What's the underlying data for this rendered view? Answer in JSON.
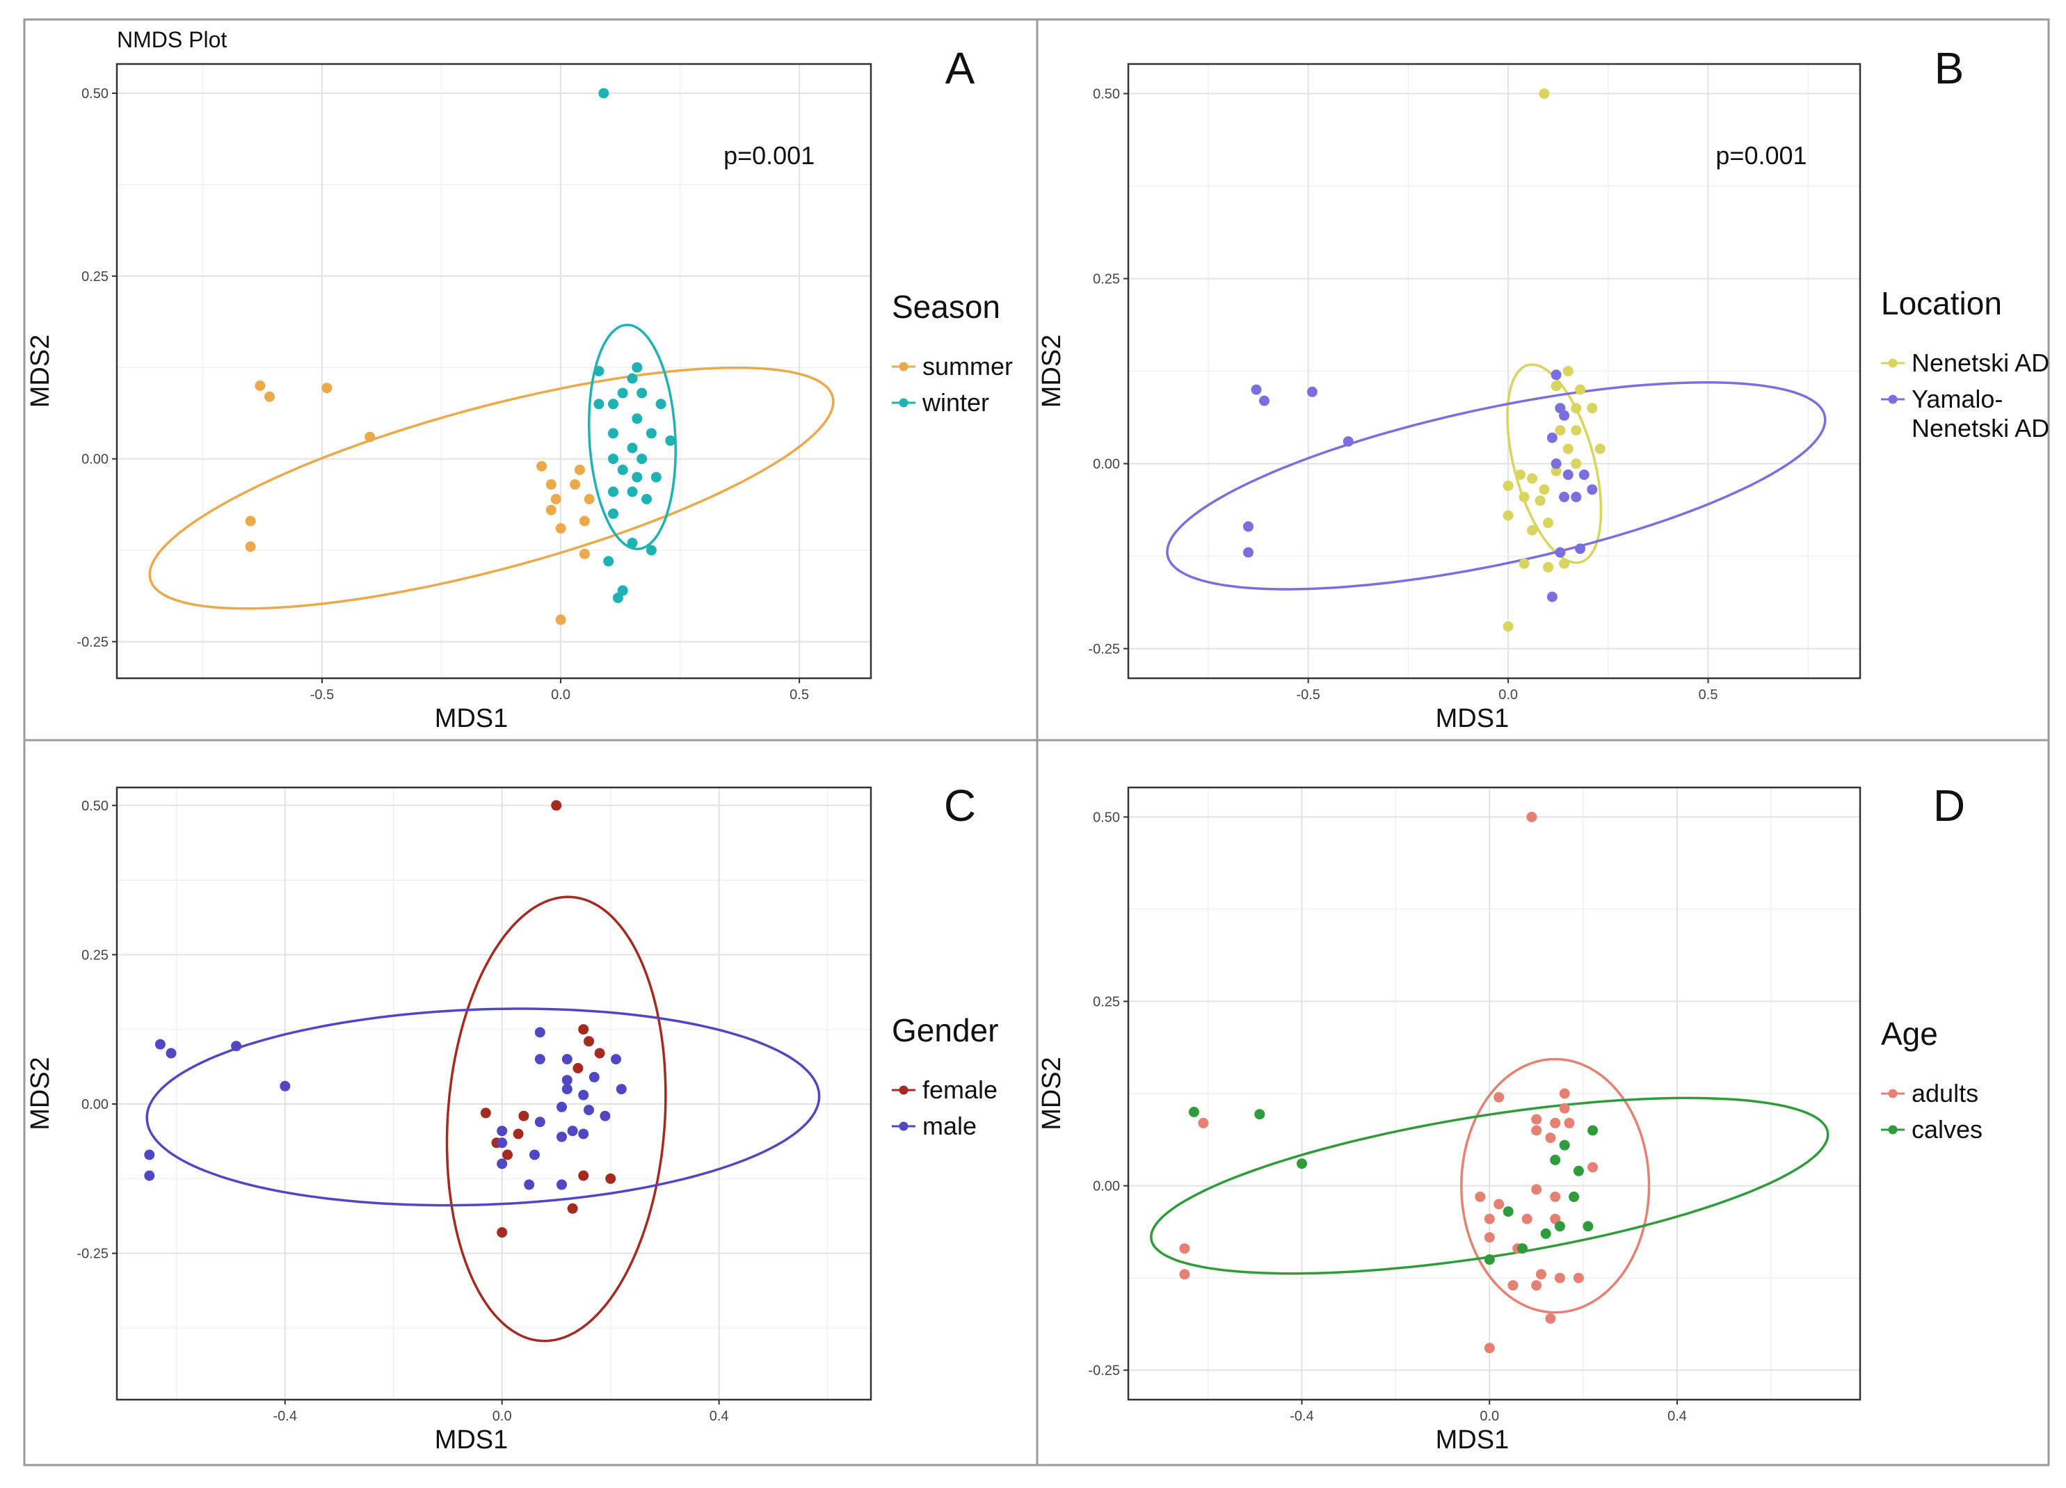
{
  "figure": {
    "title": "NMDS Plot"
  },
  "chart_data": [
    {
      "type": "scatter",
      "panel_letter": "A",
      "title": "",
      "xlabel": "MDS1",
      "ylabel": "MDS2",
      "xlim": [
        -0.93,
        0.65
      ],
      "ylim": [
        -0.3,
        0.54
      ],
      "xticks": [
        -0.5,
        0.0,
        0.5
      ],
      "xtick_labels": [
        "-0.5",
        "0.0",
        "0.5"
      ],
      "yticks": [
        -0.25,
        0.0,
        0.25,
        0.5
      ],
      "ytick_labels": [
        "-0.25",
        "0.00",
        "0.25",
        "0.50"
      ],
      "grid": true,
      "annotation": "p=0.001",
      "legend": {
        "title": "Season",
        "position": "right"
      },
      "series": [
        {
          "name": "summer",
          "color": "#eba94a",
          "points": [
            [
              -0.63,
              0.1
            ],
            [
              -0.61,
              0.085
            ],
            [
              -0.49,
              0.097
            ],
            [
              -0.4,
              0.03
            ],
            [
              -0.65,
              -0.085
            ],
            [
              -0.65,
              -0.12
            ],
            [
              -0.04,
              -0.01
            ],
            [
              -0.02,
              -0.035
            ],
            [
              -0.01,
              -0.055
            ],
            [
              -0.02,
              -0.07
            ],
            [
              0.0,
              -0.095
            ],
            [
              0.03,
              -0.035
            ],
            [
              0.04,
              -0.015
            ],
            [
              0.05,
              -0.085
            ],
            [
              0.06,
              -0.055
            ],
            [
              0.05,
              -0.13
            ],
            [
              0.0,
              -0.22
            ]
          ]
        },
        {
          "name": "winter",
          "color": "#1fb2b5",
          "points": [
            [
              0.09,
              0.5
            ],
            [
              0.08,
              0.12
            ],
            [
              0.13,
              0.09
            ],
            [
              0.16,
              0.125
            ],
            [
              0.15,
              0.11
            ],
            [
              0.17,
              0.09
            ],
            [
              0.21,
              0.075
            ],
            [
              0.08,
              0.075
            ],
            [
              0.11,
              0.075
            ],
            [
              0.16,
              0.055
            ],
            [
              0.11,
              0.035
            ],
            [
              0.19,
              0.035
            ],
            [
              0.23,
              0.025
            ],
            [
              0.15,
              0.015
            ],
            [
              0.11,
              0.0
            ],
            [
              0.17,
              0.0
            ],
            [
              0.13,
              -0.015
            ],
            [
              0.16,
              -0.025
            ],
            [
              0.2,
              -0.025
            ],
            [
              0.11,
              -0.045
            ],
            [
              0.15,
              -0.045
            ],
            [
              0.18,
              -0.055
            ],
            [
              0.11,
              -0.075
            ],
            [
              0.15,
              -0.115
            ],
            [
              0.19,
              -0.125
            ],
            [
              0.1,
              -0.14
            ],
            [
              0.13,
              -0.18
            ],
            [
              0.12,
              -0.19
            ]
          ]
        }
      ],
      "ellipses": [
        {
          "series": "summer",
          "color": "#eba94a",
          "cx": -0.145,
          "cy": -0.04,
          "rx": 0.74,
          "ry": 0.17,
          "angle_deg": 15
        },
        {
          "series": "winter",
          "color": "#1fb2b5",
          "cx": 0.15,
          "cy": 0.03,
          "rx": 0.09,
          "ry": 0.235,
          "angle_deg": 3
        }
      ]
    },
    {
      "type": "scatter",
      "panel_letter": "B",
      "title": "",
      "xlabel": "MDS1",
      "ylabel": "MDS2",
      "xlim": [
        -0.95,
        0.88
      ],
      "ylim": [
        -0.29,
        0.54
      ],
      "xticks": [
        -0.5,
        0.0,
        0.5
      ],
      "xtick_labels": [
        "-0.5",
        "0.0",
        "0.5"
      ],
      "yticks": [
        -0.25,
        0.0,
        0.25,
        0.5
      ],
      "ytick_labels": [
        "-0.25",
        "0.00",
        "0.25",
        "0.50"
      ],
      "grid": true,
      "annotation": "p=0.001",
      "legend": {
        "title": "Location",
        "position": "right"
      },
      "series": [
        {
          "name": "Nenetski AD",
          "color": "#d9d45e",
          "legend_lines": [
            "Nenetski AD"
          ],
          "points": [
            [
              0.09,
              0.5
            ],
            [
              0.15,
              0.125
            ],
            [
              0.18,
              0.1
            ],
            [
              0.12,
              0.105
            ],
            [
              0.13,
              0.075
            ],
            [
              0.17,
              0.075
            ],
            [
              0.21,
              0.075
            ],
            [
              0.13,
              0.045
            ],
            [
              0.17,
              0.045
            ],
            [
              0.15,
              0.02
            ],
            [
              0.23,
              0.02
            ],
            [
              0.17,
              0.0
            ],
            [
              0.03,
              -0.015
            ],
            [
              0.06,
              -0.02
            ],
            [
              0.09,
              -0.035
            ],
            [
              0.0,
              -0.03
            ],
            [
              0.12,
              -0.01
            ],
            [
              0.04,
              -0.045
            ],
            [
              0.08,
              -0.05
            ],
            [
              0.0,
              -0.07
            ],
            [
              0.1,
              -0.08
            ],
            [
              0.06,
              -0.09
            ],
            [
              0.04,
              -0.135
            ],
            [
              0.1,
              -0.14
            ],
            [
              0.14,
              -0.135
            ],
            [
              0.0,
              -0.22
            ]
          ]
        },
        {
          "name": "Yamalo-Nenetski AD",
          "color": "#7b6fe0",
          "legend_lines": [
            "Yamalo-",
            "Nenetski AD"
          ],
          "points": [
            [
              -0.63,
              0.1
            ],
            [
              -0.61,
              0.085
            ],
            [
              -0.49,
              0.097
            ],
            [
              -0.4,
              0.03
            ],
            [
              -0.65,
              -0.085
            ],
            [
              -0.65,
              -0.12
            ],
            [
              0.12,
              0.12
            ],
            [
              0.13,
              0.075
            ],
            [
              0.14,
              0.065
            ],
            [
              0.11,
              0.035
            ],
            [
              0.12,
              -0.0
            ],
            [
              0.15,
              -0.015
            ],
            [
              0.19,
              -0.015
            ],
            [
              0.21,
              -0.035
            ],
            [
              0.14,
              -0.045
            ],
            [
              0.17,
              -0.045
            ],
            [
              0.18,
              -0.115
            ],
            [
              0.13,
              -0.12
            ],
            [
              0.11,
              -0.18
            ]
          ]
        }
      ],
      "ellipses": [
        {
          "series": "Nenetski AD",
          "color": "#d9d45e",
          "cx": 0.115,
          "cy": 0.0,
          "rx": 0.1,
          "ry": 0.255,
          "angle_deg": 15
        },
        {
          "series": "Yamalo-Nenetski AD",
          "color": "#7b6fe0",
          "cx": -0.03,
          "cy": -0.03,
          "rx": 0.84,
          "ry": 0.195,
          "angle_deg": 12
        }
      ]
    },
    {
      "type": "scatter",
      "panel_letter": "C",
      "title": "",
      "xlabel": "MDS1",
      "ylabel": "MDS2",
      "xlim": [
        -0.71,
        0.68
      ],
      "ylim": [
        -0.495,
        0.53
      ],
      "xticks": [
        -0.4,
        0.0,
        0.4
      ],
      "xtick_labels": [
        "-0.4",
        "0.0",
        "0.4"
      ],
      "yticks": [
        -0.25,
        0.0,
        0.25,
        0.5
      ],
      "ytick_labels": [
        "-0.25",
        "0.00",
        "0.25",
        "0.50"
      ],
      "grid": true,
      "annotation": "",
      "legend": {
        "title": "Gender",
        "position": "right"
      },
      "series": [
        {
          "name": "female",
          "color": "#a52a1f",
          "points": [
            [
              0.1,
              0.5
            ],
            [
              0.15,
              0.125
            ],
            [
              0.16,
              0.105
            ],
            [
              0.18,
              0.085
            ],
            [
              0.14,
              0.06
            ],
            [
              -0.03,
              -0.015
            ],
            [
              0.04,
              -0.02
            ],
            [
              -0.01,
              -0.065
            ],
            [
              0.01,
              -0.085
            ],
            [
              0.03,
              -0.05
            ],
            [
              0.15,
              -0.12
            ],
            [
              0.2,
              -0.125
            ],
            [
              0.13,
              -0.175
            ],
            [
              0.0,
              -0.215
            ]
          ]
        },
        {
          "name": "male",
          "color": "#5147c2",
          "points": [
            [
              -0.63,
              0.1
            ],
            [
              -0.61,
              0.085
            ],
            [
              -0.49,
              0.097
            ],
            [
              -0.4,
              0.03
            ],
            [
              -0.65,
              -0.085
            ],
            [
              -0.65,
              -0.12
            ],
            [
              0.07,
              0.12
            ],
            [
              0.07,
              0.075
            ],
            [
              0.12,
              0.075
            ],
            [
              0.21,
              0.075
            ],
            [
              0.12,
              0.04
            ],
            [
              0.17,
              0.045
            ],
            [
              0.12,
              0.025
            ],
            [
              0.22,
              0.025
            ],
            [
              0.15,
              0.015
            ],
            [
              0.11,
              -0.005
            ],
            [
              0.16,
              -0.01
            ],
            [
              0.19,
              -0.02
            ],
            [
              0.07,
              -0.03
            ],
            [
              0.13,
              -0.045
            ],
            [
              0.15,
              -0.05
            ],
            [
              0.11,
              -0.055
            ],
            [
              0.0,
              -0.045
            ],
            [
              0.0,
              -0.065
            ],
            [
              0.06,
              -0.085
            ],
            [
              0.0,
              -0.1
            ],
            [
              0.05,
              -0.135
            ],
            [
              0.11,
              -0.135
            ]
          ]
        }
      ],
      "ellipses": [
        {
          "series": "female",
          "color": "#a52a1f",
          "cx": 0.1,
          "cy": -0.025,
          "rx": 0.41,
          "ry": 0.2,
          "angle_deg": -94
        },
        {
          "series": "male",
          "color": "#5147c2",
          "cx": -0.035,
          "cy": -0.005,
          "rx": 0.62,
          "ry": 0.18,
          "angle_deg": 2
        }
      ]
    },
    {
      "type": "scatter",
      "panel_letter": "D",
      "title": "",
      "xlabel": "MDS1",
      "ylabel": "MDS2",
      "xlim": [
        -0.77,
        0.79
      ],
      "ylim": [
        -0.29,
        0.54
      ],
      "xticks": [
        -0.4,
        0.0,
        0.4
      ],
      "xtick_labels": [
        "-0.4",
        "0.0",
        "0.4"
      ],
      "yticks": [
        -0.25,
        0.0,
        0.25,
        0.5
      ],
      "ytick_labels": [
        "-0.25",
        "0.00",
        "0.25",
        "0.50"
      ],
      "grid": true,
      "annotation": "",
      "legend": {
        "title": "Age",
        "position": "right"
      },
      "series": [
        {
          "name": "adults",
          "color": "#e58173",
          "points": [
            [
              0.09,
              0.5
            ],
            [
              -0.61,
              0.085
            ],
            [
              -0.65,
              -0.085
            ],
            [
              -0.65,
              -0.12
            ],
            [
              0.02,
              0.12
            ],
            [
              0.16,
              0.125
            ],
            [
              0.16,
              0.105
            ],
            [
              0.1,
              0.09
            ],
            [
              0.14,
              0.085
            ],
            [
              0.17,
              0.085
            ],
            [
              0.1,
              0.075
            ],
            [
              0.13,
              0.065
            ],
            [
              0.16,
              0.055
            ],
            [
              0.22,
              0.025
            ],
            [
              -0.02,
              -0.015
            ],
            [
              0.02,
              -0.025
            ],
            [
              0.1,
              -0.005
            ],
            [
              0.14,
              -0.015
            ],
            [
              0.08,
              -0.045
            ],
            [
              0.0,
              -0.045
            ],
            [
              0.14,
              -0.045
            ],
            [
              0.0,
              -0.07
            ],
            [
              0.06,
              -0.085
            ],
            [
              0.11,
              -0.12
            ],
            [
              0.15,
              -0.125
            ],
            [
              0.19,
              -0.125
            ],
            [
              0.05,
              -0.135
            ],
            [
              0.1,
              -0.135
            ],
            [
              0.13,
              -0.18
            ],
            [
              0.0,
              -0.22
            ]
          ]
        },
        {
          "name": "calves",
          "color": "#2f9b3a",
          "points": [
            [
              -0.63,
              0.1
            ],
            [
              -0.49,
              0.097
            ],
            [
              -0.4,
              0.03
            ],
            [
              0.22,
              0.075
            ],
            [
              0.16,
              0.055
            ],
            [
              0.14,
              0.035
            ],
            [
              0.19,
              0.02
            ],
            [
              0.18,
              -0.015
            ],
            [
              0.04,
              -0.035
            ],
            [
              0.15,
              -0.055
            ],
            [
              0.21,
              -0.055
            ],
            [
              0.12,
              -0.065
            ],
            [
              0.07,
              -0.085
            ],
            [
              0.0,
              -0.1
            ]
          ]
        }
      ],
      "ellipses": [
        {
          "series": "adults",
          "color": "#e58173",
          "cx": 0.14,
          "cy": 0.0,
          "rx": 0.27,
          "ry": 0.2,
          "angle_deg": -90
        },
        {
          "series": "calves",
          "color": "#2f9b3a",
          "cx": 0.0,
          "cy": 0.0,
          "rx": 0.73,
          "ry": 0.15,
          "angle_deg": 9
        }
      ]
    }
  ]
}
